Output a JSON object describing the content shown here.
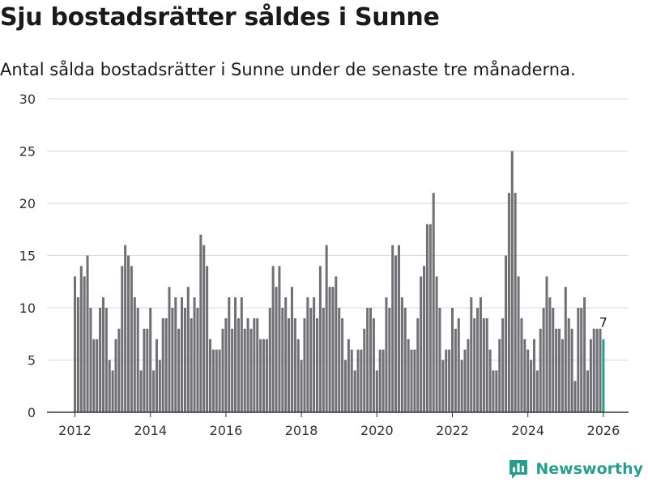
{
  "header": {
    "title": "Sju bostadsrätter såldes i Sunne",
    "subtitle": "Antal sålda bostadsrätter i Sunne under de senaste tre månaderna."
  },
  "brand": {
    "name": "Newsworthy"
  },
  "colors": {
    "bar": "#707075",
    "highlight": "#2a9d8f",
    "grid": "#d9d9d9",
    "axis": "#333333"
  },
  "chart_data": {
    "type": "bar",
    "title": "Sju bostadsrätter såldes i Sunne",
    "xlabel": "",
    "ylabel": "",
    "ylim": [
      0,
      30
    ],
    "yticks": [
      0,
      5,
      10,
      15,
      20,
      25,
      30
    ],
    "xticks": [
      "2012",
      "2014",
      "2016",
      "2018",
      "2020",
      "2022",
      "2024",
      "2026"
    ],
    "x_start": "2012-01",
    "annotation": {
      "label": "7",
      "at": "last"
    },
    "values": [
      13,
      11,
      14,
      13,
      15,
      10,
      7,
      7,
      10,
      11,
      10,
      5,
      4,
      7,
      8,
      14,
      16,
      15,
      14,
      11,
      10,
      4,
      8,
      8,
      10,
      4,
      7,
      5,
      9,
      9,
      12,
      10,
      11,
      8,
      11,
      10,
      12,
      9,
      11,
      10,
      17,
      16,
      14,
      7,
      6,
      6,
      6,
      8,
      9,
      11,
      8,
      11,
      9,
      11,
      8,
      9,
      8,
      9,
      9,
      7,
      7,
      7,
      10,
      14,
      12,
      14,
      10,
      11,
      9,
      12,
      9,
      7,
      5,
      9,
      11,
      10,
      11,
      9,
      14,
      10,
      16,
      12,
      12,
      13,
      10,
      9,
      5,
      7,
      6,
      4,
      6,
      6,
      8,
      10,
      10,
      9,
      4,
      6,
      6,
      11,
      10,
      16,
      15,
      16,
      11,
      10,
      7,
      6,
      6,
      9,
      13,
      14,
      18,
      18,
      21,
      13,
      10,
      5,
      6,
      6,
      10,
      8,
      9,
      5,
      6,
      7,
      11,
      9,
      10,
      11,
      9,
      9,
      6,
      4,
      4,
      7,
      9,
      15,
      21,
      25,
      21,
      13,
      9,
      7,
      6,
      5,
      7,
      4,
      8,
      10,
      13,
      11,
      10,
      8,
      8,
      7,
      12,
      9,
      8,
      3,
      10,
      10,
      11,
      4,
      7,
      8,
      8,
      8,
      7
    ]
  }
}
